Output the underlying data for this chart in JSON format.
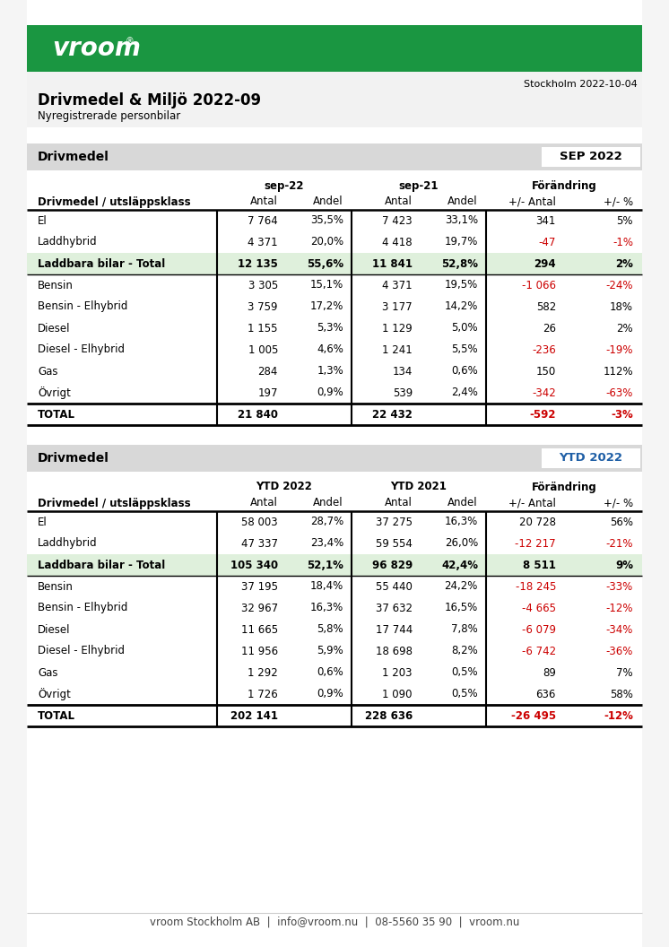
{
  "title": "Drivmedel & Miljö 2022-09",
  "subtitle": "Nyregistrerade personbilar",
  "date": "Stockholm 2022-10-04",
  "footer": "vroom Stockholm AB  |  info@vroom.nu  |  08-5560 35 90  |  vroom.nu",
  "green_color": "#1a9641",
  "light_green_bg": "#dff0dc",
  "gray_bg": "#d8d8d8",
  "red_color": "#cc0000",
  "blue_color": "#1f5fa6",
  "black": "#000000",
  "white": "#ffffff",
  "page_bg": "#f5f5f5",
  "table1": {
    "header_label": "Drivmedel",
    "badge": "SEP 2022",
    "badge_color": "#000000",
    "col_group1": "sep-22",
    "col_group2": "sep-21",
    "col_group3": "Förändring",
    "rows": [
      {
        "label": "El",
        "v1": "7 764",
        "v2": "35,5%",
        "v3": "7 423",
        "v4": "33,1%",
        "v5": "341",
        "v6": "5%",
        "bold": false,
        "green_bg": false,
        "red5": false,
        "red6": false
      },
      {
        "label": "Laddhybrid",
        "v1": "4 371",
        "v2": "20,0%",
        "v3": "4 418",
        "v4": "19,7%",
        "v5": "-47",
        "v6": "-1%",
        "bold": false,
        "green_bg": false,
        "red5": true,
        "red6": true
      },
      {
        "label": "Laddbara bilar - Total",
        "v1": "12 135",
        "v2": "55,6%",
        "v3": "11 841",
        "v4": "52,8%",
        "v5": "294",
        "v6": "2%",
        "bold": true,
        "green_bg": true,
        "red5": false,
        "red6": false
      },
      {
        "label": "Bensin",
        "v1": "3 305",
        "v2": "15,1%",
        "v3": "4 371",
        "v4": "19,5%",
        "v5": "-1 066",
        "v6": "-24%",
        "bold": false,
        "green_bg": false,
        "red5": true,
        "red6": true
      },
      {
        "label": "Bensin - Elhybrid",
        "v1": "3 759",
        "v2": "17,2%",
        "v3": "3 177",
        "v4": "14,2%",
        "v5": "582",
        "v6": "18%",
        "bold": false,
        "green_bg": false,
        "red5": false,
        "red6": false
      },
      {
        "label": "Diesel",
        "v1": "1 155",
        "v2": "5,3%",
        "v3": "1 129",
        "v4": "5,0%",
        "v5": "26",
        "v6": "2%",
        "bold": false,
        "green_bg": false,
        "red5": false,
        "red6": false
      },
      {
        "label": "Diesel - Elhybrid",
        "v1": "1 005",
        "v2": "4,6%",
        "v3": "1 241",
        "v4": "5,5%",
        "v5": "-236",
        "v6": "-19%",
        "bold": false,
        "green_bg": false,
        "red5": true,
        "red6": true
      },
      {
        "label": "Gas",
        "v1": "284",
        "v2": "1,3%",
        "v3": "134",
        "v4": "0,6%",
        "v5": "150",
        "v6": "112%",
        "bold": false,
        "green_bg": false,
        "red5": false,
        "red6": false
      },
      {
        "label": "Övrigt",
        "v1": "197",
        "v2": "0,9%",
        "v3": "539",
        "v4": "2,4%",
        "v5": "-342",
        "v6": "-63%",
        "bold": false,
        "green_bg": false,
        "red5": true,
        "red6": true
      },
      {
        "label": "TOTAL",
        "v1": "21 840",
        "v2": "",
        "v3": "22 432",
        "v4": "",
        "v5": "-592",
        "v6": "-3%",
        "bold": true,
        "green_bg": false,
        "red5": true,
        "red6": true
      }
    ]
  },
  "table2": {
    "header_label": "Drivmedel",
    "badge": "YTD 2022",
    "badge_color": "#1f5fa6",
    "col_group1": "YTD 2022",
    "col_group2": "YTD 2021",
    "col_group3": "Förändring",
    "rows": [
      {
        "label": "El",
        "v1": "58 003",
        "v2": "28,7%",
        "v3": "37 275",
        "v4": "16,3%",
        "v5": "20 728",
        "v6": "56%",
        "bold": false,
        "green_bg": false,
        "red5": false,
        "red6": false
      },
      {
        "label": "Laddhybrid",
        "v1": "47 337",
        "v2": "23,4%",
        "v3": "59 554",
        "v4": "26,0%",
        "v5": "-12 217",
        "v6": "-21%",
        "bold": false,
        "green_bg": false,
        "red5": true,
        "red6": true
      },
      {
        "label": "Laddbara bilar - Total",
        "v1": "105 340",
        "v2": "52,1%",
        "v3": "96 829",
        "v4": "42,4%",
        "v5": "8 511",
        "v6": "9%",
        "bold": true,
        "green_bg": true,
        "red5": false,
        "red6": false
      },
      {
        "label": "Bensin",
        "v1": "37 195",
        "v2": "18,4%",
        "v3": "55 440",
        "v4": "24,2%",
        "v5": "-18 245",
        "v6": "-33%",
        "bold": false,
        "green_bg": false,
        "red5": true,
        "red6": true
      },
      {
        "label": "Bensin - Elhybrid",
        "v1": "32 967",
        "v2": "16,3%",
        "v3": "37 632",
        "v4": "16,5%",
        "v5": "-4 665",
        "v6": "-12%",
        "bold": false,
        "green_bg": false,
        "red5": true,
        "red6": true
      },
      {
        "label": "Diesel",
        "v1": "11 665",
        "v2": "5,8%",
        "v3": "17 744",
        "v4": "7,8%",
        "v5": "-6 079",
        "v6": "-34%",
        "bold": false,
        "green_bg": false,
        "red5": true,
        "red6": true
      },
      {
        "label": "Diesel - Elhybrid",
        "v1": "11 956",
        "v2": "5,9%",
        "v3": "18 698",
        "v4": "8,2%",
        "v5": "-6 742",
        "v6": "-36%",
        "bold": false,
        "green_bg": false,
        "red5": true,
        "red6": true
      },
      {
        "label": "Gas",
        "v1": "1 292",
        "v2": "0,6%",
        "v3": "1 203",
        "v4": "0,5%",
        "v5": "89",
        "v6": "7%",
        "bold": false,
        "green_bg": false,
        "red5": false,
        "red6": false
      },
      {
        "label": "Övrigt",
        "v1": "1 726",
        "v2": "0,9%",
        "v3": "1 090",
        "v4": "0,5%",
        "v5": "636",
        "v6": "58%",
        "bold": false,
        "green_bg": false,
        "red5": false,
        "red6": false
      },
      {
        "label": "TOTAL",
        "v1": "202 141",
        "v2": "",
        "v3": "228 636",
        "v4": "",
        "v5": "-26 495",
        "v6": "-12%",
        "bold": true,
        "green_bg": false,
        "red5": true,
        "red6": true
      }
    ]
  }
}
